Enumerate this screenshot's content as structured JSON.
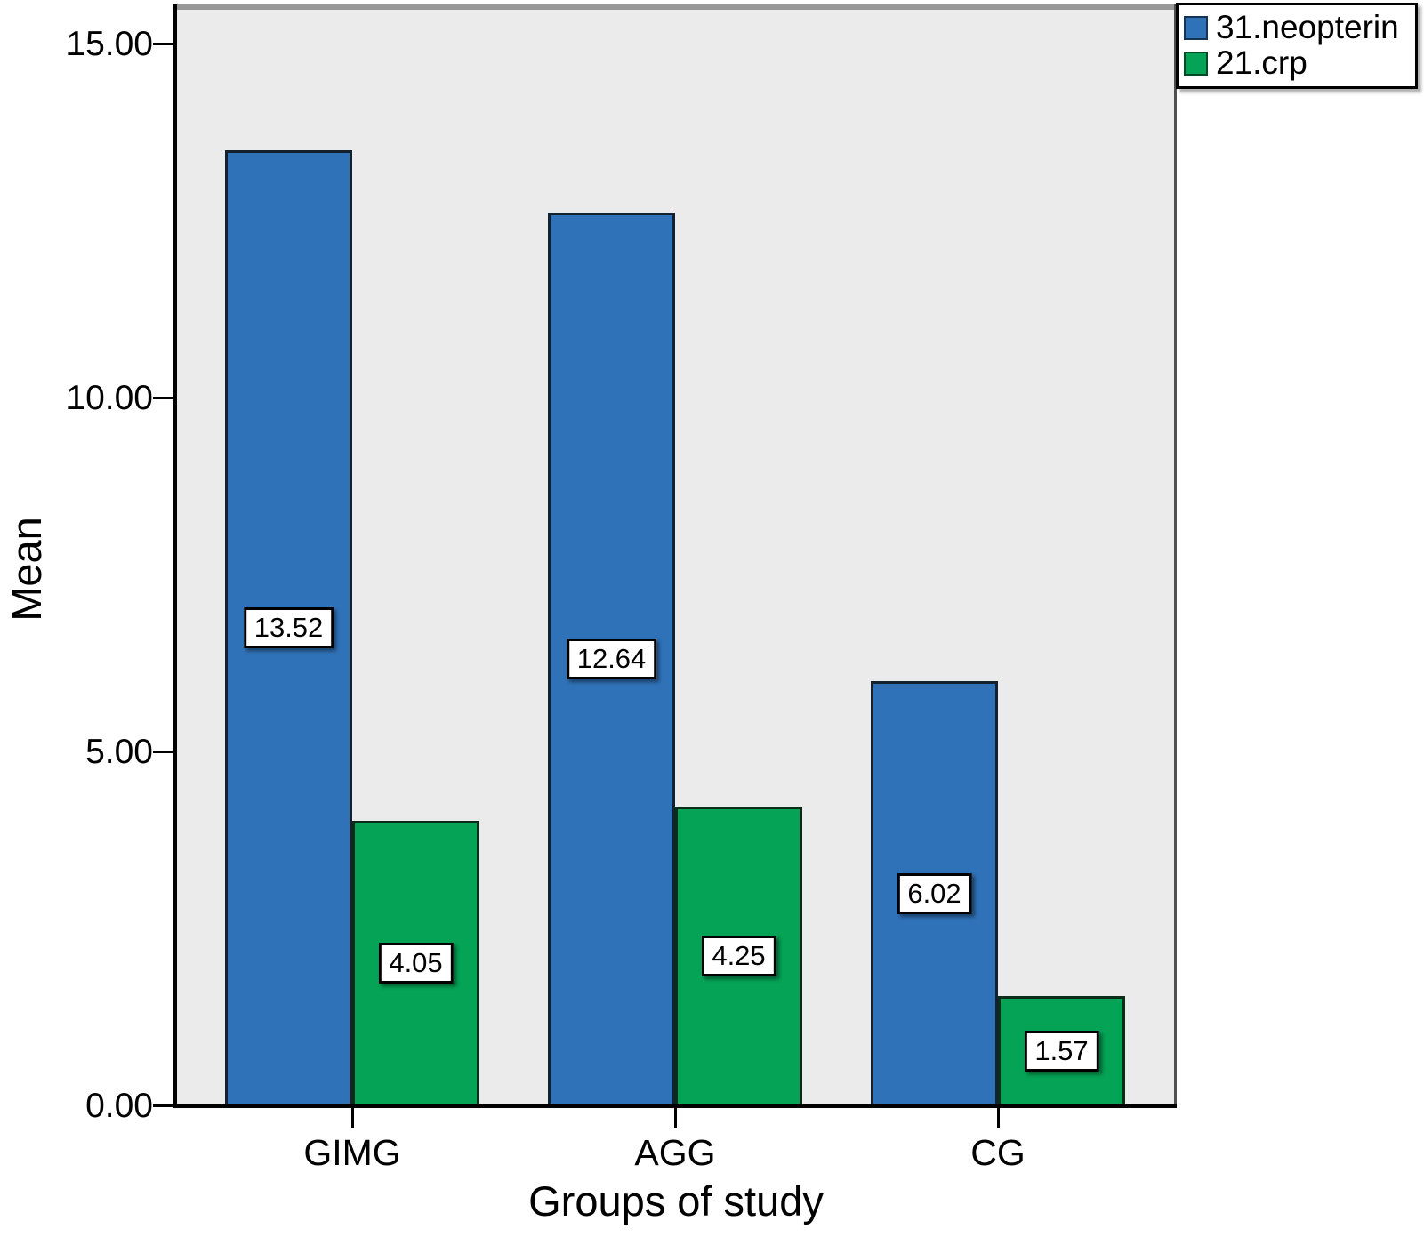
{
  "chart_data": {
    "type": "bar",
    "title": "",
    "xlabel": "Groups of study",
    "ylabel": "Mean",
    "categories": [
      "GIMG",
      "AGG",
      "CG"
    ],
    "series": [
      {
        "name": "31.neopterin",
        "color": "#3072B8",
        "values": [
          13.52,
          12.64,
          6.02
        ]
      },
      {
        "name": "21.crp",
        "color": "#04A355",
        "values": [
          4.05,
          4.25,
          1.57
        ]
      }
    ],
    "data_labels": [
      [
        "13.52",
        "12.64",
        "6.02"
      ],
      [
        "4.05",
        "4.25",
        "1.57"
      ]
    ],
    "ylim": [
      0,
      15
    ],
    "yticks": [
      {
        "v": 0,
        "label": "0.00"
      },
      {
        "v": 5,
        "label": "5.00"
      },
      {
        "v": 10,
        "label": "10.00"
      },
      {
        "v": 15,
        "label": "15.00"
      }
    ],
    "grid": false,
    "legend_position": "top-right",
    "plot_background": "#EBEBEB"
  }
}
